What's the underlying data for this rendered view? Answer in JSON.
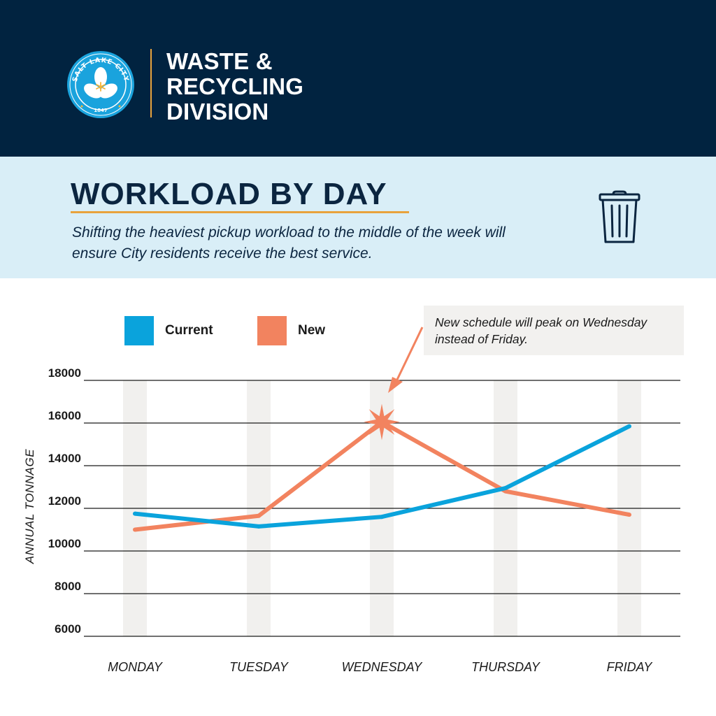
{
  "header": {
    "seal": {
      "text_top": "SALT LAKE CITY",
      "year": "1847",
      "colors": {
        "seal": "#1aa3dd",
        "flower": "#ffffff",
        "center": "#f5b335"
      }
    },
    "division_lines": [
      "WASTE &",
      "RECYCLING",
      "DIVISION"
    ]
  },
  "banner": {
    "title": "WORKLOAD BY DAY",
    "subtitle": "Shifting the heaviest pickup workload to the middle of the week will ensure City residents receive the best service.",
    "icon": "trash-can-icon"
  },
  "legend": [
    {
      "label": "Current",
      "color": "#0aa3dc"
    },
    {
      "label": "New",
      "color": "#f2835f"
    }
  ],
  "callout": {
    "text": "New schedule will peak on Wednesday instead of Friday."
  },
  "chart_data": {
    "type": "line",
    "title": "WORKLOAD BY DAY",
    "xlabel": "",
    "ylabel": "ANNUAL TONNAGE",
    "categories": [
      "MONDAY",
      "TUESDAY",
      "WEDNESDAY",
      "THURSDAY",
      "FRIDAY"
    ],
    "series": [
      {
        "name": "Current",
        "color": "#0aa3dc",
        "values": [
          11750,
          11150,
          11600,
          12950,
          15850
        ]
      },
      {
        "name": "New",
        "color": "#f2835f",
        "values": [
          11000,
          11650,
          16050,
          12800,
          11700
        ]
      }
    ],
    "ylim": [
      6000,
      18000
    ],
    "yticks": [
      6000,
      8000,
      10000,
      12000,
      14000,
      16000,
      18000
    ],
    "ytick_labels": [
      "6000",
      "8000",
      "10000",
      "12000",
      "14000",
      "16000",
      "18000"
    ],
    "grid": true,
    "legend_position": "top-left",
    "peak_marker": {
      "series": "New",
      "category": "WEDNESDAY"
    }
  }
}
